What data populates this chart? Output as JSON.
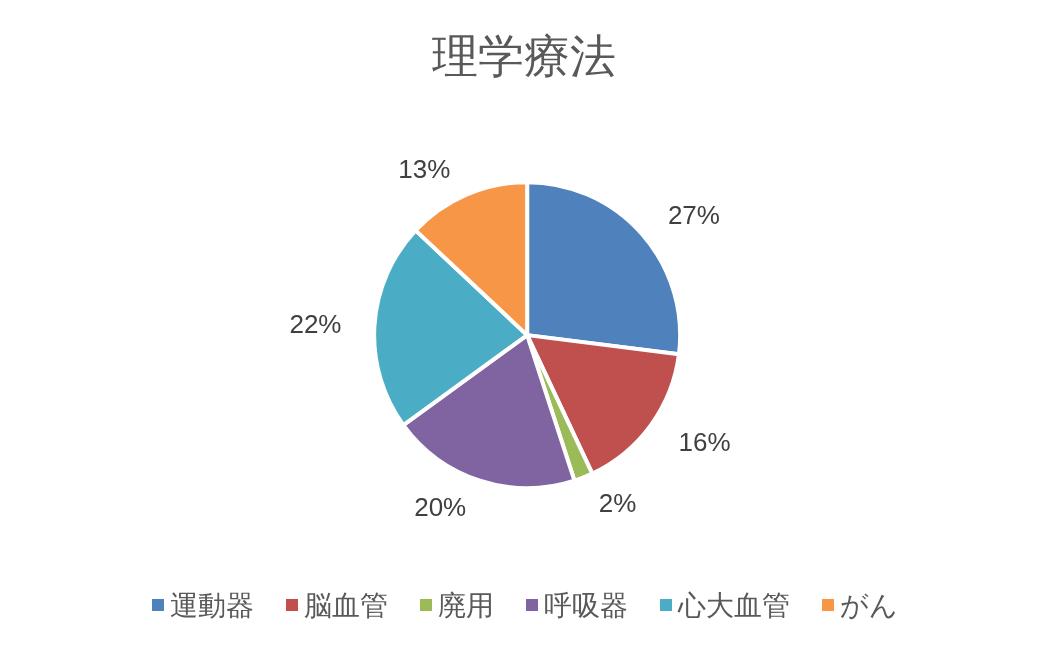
{
  "chart_data": {
    "type": "pie",
    "title": "理学療法",
    "categories": [
      "運動器",
      "脳血管",
      "廃用",
      "呼吸器",
      "心大血管",
      "がん"
    ],
    "values": [
      27,
      16,
      2,
      20,
      22,
      13
    ],
    "colors": [
      "#4f81bd",
      "#c0504d",
      "#9bbb59",
      "#8064a2",
      "#4bacc6",
      "#f79646"
    ],
    "value_labels": [
      "27%",
      "16%",
      "2%",
      "20%",
      "22%",
      "13%"
    ],
    "legend": "bottom"
  }
}
